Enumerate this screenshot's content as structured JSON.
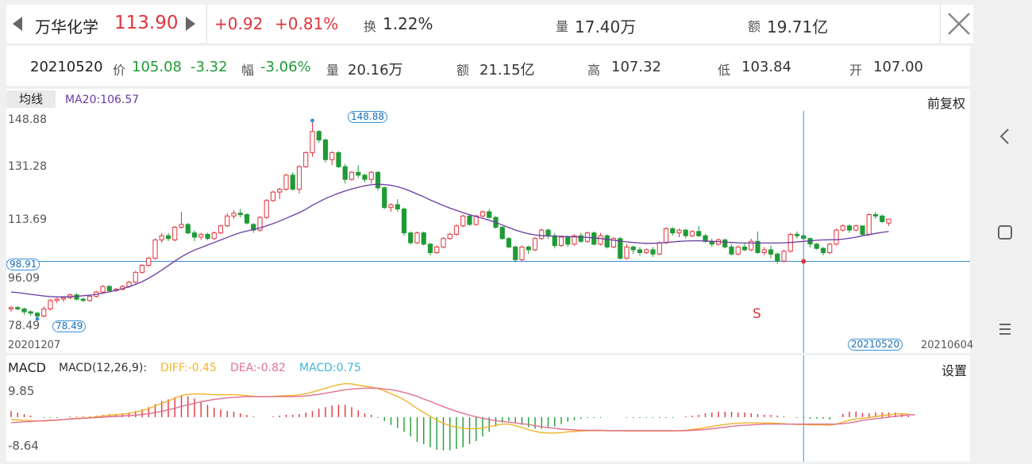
{
  "header": {
    "stock_name": "万华化学",
    "price": "113.90",
    "change": "+0.92",
    "change_pct": "+0.81%",
    "turnover_label": "换",
    "turnover": "1.22%",
    "volume_label": "量",
    "volume": "17.40万",
    "amount_label": "额",
    "amount": "19.71亿"
  },
  "info": {
    "date": "20210520",
    "price_label": "价",
    "price": "105.08",
    "change": "-3.32",
    "range_label": "幅",
    "range": "-3.06%",
    "volume_label": "量",
    "volume": "20.16万",
    "amount_label": "额",
    "amount": "21.15亿",
    "high_label": "高",
    "high": "107.32",
    "low_label": "低",
    "low": "103.84",
    "open_label": "开",
    "open": "107.00"
  },
  "kchart": {
    "ma_tab": "均线",
    "ma_text": "MA20:106.57",
    "adjust": "前复权",
    "y_labels": [
      "148.88",
      "131.28",
      "113.69",
      "96.09",
      "78.49"
    ],
    "max_tag": "148.88",
    "min_tag": "78.49",
    "ref_tag": "98.91",
    "signal": "S",
    "start_date": "20201207",
    "cursor_date": "20210520",
    "end_date": "20210604"
  },
  "macd": {
    "title": "MACD",
    "params": "MACD(12,26,9):",
    "diff": "DIFF:-0.45",
    "dea": "DEA:-0.82",
    "macd": "MACD:0.75",
    "settings": "设置",
    "y_top": "9.85",
    "y_bottom": "-8.64"
  },
  "colors": {
    "up": "#e0343c",
    "down": "#1f9b36",
    "ma": "#6a3aa0",
    "diff": "#f0b429",
    "dea": "#e07090",
    "cursor": "#3a8fd9"
  },
  "chart_data": {
    "type": "candlestick",
    "candles": [
      [
        82,
        83,
        81,
        82.5
      ],
      [
        82.5,
        83,
        81.5,
        82
      ],
      [
        82,
        82.5,
        80,
        81
      ],
      [
        81,
        81.5,
        79.5,
        80.5
      ],
      [
        80.5,
        81,
        78.49,
        79.5
      ],
      [
        79.5,
        83,
        79,
        82
      ],
      [
        82,
        85.5,
        81.5,
        85
      ],
      [
        85,
        86,
        84,
        85.5
      ],
      [
        85.5,
        86.5,
        84.5,
        86
      ],
      [
        86,
        87.5,
        85.5,
        87
      ],
      [
        87,
        87.5,
        85,
        85.5
      ],
      [
        85.5,
        86,
        84.5,
        85
      ],
      [
        85,
        87,
        84.5,
        86.5
      ],
      [
        86.5,
        88.5,
        86,
        88
      ],
      [
        88,
        90.5,
        87.5,
        90
      ],
      [
        90,
        90.5,
        88,
        88.5
      ],
      [
        88.5,
        89.5,
        88,
        89
      ],
      [
        89,
        90.5,
        88.5,
        90
      ],
      [
        90,
        92,
        89.5,
        91.5
      ],
      [
        91.5,
        95.5,
        91,
        95
      ],
      [
        95,
        98,
        94.5,
        97.5
      ],
      [
        97.5,
        100.5,
        97,
        100
      ],
      [
        100,
        107,
        99.5,
        106.5
      ],
      [
        106.5,
        109,
        105.5,
        108
      ],
      [
        108,
        109,
        106,
        107
      ],
      [
        106.5,
        111.5,
        106,
        111
      ],
      [
        111,
        116.5,
        110.5,
        112
      ],
      [
        112,
        112.5,
        108.5,
        109
      ],
      [
        109,
        110,
        106,
        107.5
      ],
      [
        107.5,
        109,
        106.5,
        108.5
      ],
      [
        108.5,
        109,
        106.5,
        107
      ],
      [
        107,
        109.5,
        106.5,
        109
      ],
      [
        109,
        112,
        108.5,
        111.5
      ],
      [
        111.5,
        116,
        111,
        115
      ],
      [
        115,
        117,
        114,
        116
      ],
      [
        116,
        117.5,
        114.5,
        115.5
      ],
      [
        115.5,
        116,
        112,
        112.5
      ],
      [
        112,
        112.5,
        109,
        110
      ],
      [
        110,
        115,
        109.5,
        114.5
      ],
      [
        114.5,
        121,
        114,
        120.5
      ],
      [
        120.5,
        124,
        120,
        123.5
      ],
      [
        123.5,
        125,
        121,
        124.5
      ],
      [
        124.5,
        130,
        124,
        129.5
      ],
      [
        129.5,
        130.5,
        124,
        124.5
      ],
      [
        124.5,
        133,
        123,
        132.5
      ],
      [
        132.5,
        138,
        132,
        137.5
      ],
      [
        137.5,
        148.88,
        136,
        145
      ],
      [
        145,
        145.5,
        141,
        142
      ],
      [
        142,
        142.5,
        134,
        135
      ],
      [
        135,
        138,
        133,
        137.5
      ],
      [
        137.5,
        138,
        132,
        132.5
      ],
      [
        132.5,
        133.5,
        126.5,
        128
      ],
      [
        128,
        131,
        127.5,
        130.5
      ],
      [
        130.5,
        133,
        128.5,
        129.5
      ],
      [
        129.5,
        130,
        127,
        128
      ],
      [
        128,
        131,
        126.5,
        130.5
      ],
      [
        130.5,
        131,
        124,
        125
      ],
      [
        125,
        125.5,
        117.5,
        118
      ],
      [
        118,
        119.5,
        116.5,
        119
      ],
      [
        119,
        121,
        116.5,
        117.5
      ],
      [
        117.5,
        118,
        108,
        109
      ],
      [
        109,
        109.5,
        105,
        105.5
      ],
      [
        105.5,
        109.5,
        105,
        109
      ],
      [
        109,
        109.5,
        104.5,
        105
      ],
      [
        105,
        105.5,
        101,
        102
      ],
      [
        102,
        104.5,
        101.5,
        104
      ],
      [
        104,
        107.5,
        103.5,
        107
      ],
      [
        107,
        109,
        106.5,
        108.5
      ],
      [
        108.5,
        112,
        108,
        111.5
      ],
      [
        111.5,
        115.5,
        111,
        115
      ],
      [
        115,
        115.5,
        111.5,
        112
      ],
      [
        112,
        115.5,
        111.5,
        115
      ],
      [
        115,
        117,
        114.5,
        116.5
      ],
      [
        116.5,
        117.5,
        114,
        114.5
      ],
      [
        114.5,
        115,
        110.5,
        111
      ],
      [
        111,
        111.5,
        106.5,
        107
      ],
      [
        107,
        107.5,
        103.5,
        104
      ],
      [
        104,
        104.5,
        98.5,
        99.5
      ],
      [
        99.5,
        104.5,
        99,
        104
      ],
      [
        104,
        104.5,
        101.5,
        103
      ],
      [
        103,
        107.5,
        102.5,
        107
      ],
      [
        107,
        110.5,
        106.5,
        110
      ],
      [
        110,
        110.5,
        107,
        108
      ],
      [
        108,
        109,
        103.5,
        104.5
      ],
      [
        104.5,
        108,
        104,
        107.5
      ],
      [
        107.5,
        108,
        104,
        105
      ],
      [
        105,
        108.5,
        104.5,
        108
      ],
      [
        108,
        109,
        105.5,
        106
      ],
      [
        106,
        109.5,
        105.5,
        109
      ],
      [
        109,
        109.5,
        104.5,
        105
      ],
      [
        105,
        109,
        104.5,
        108
      ],
      [
        108,
        108.5,
        103.5,
        104
      ],
      [
        104,
        107.5,
        103.5,
        107
      ],
      [
        107,
        107.5,
        99.5,
        100
      ],
      [
        100,
        105,
        99.5,
        104
      ],
      [
        104,
        104.5,
        101.5,
        103
      ],
      [
        103,
        104,
        101,
        102
      ],
      [
        102,
        103.5,
        101.5,
        103
      ],
      [
        103,
        104,
        100.5,
        101.5
      ],
      [
        101.5,
        106,
        101,
        105.5
      ],
      [
        105.5,
        111,
        105,
        110.5
      ],
      [
        110.5,
        111,
        108,
        109
      ],
      [
        109,
        110.5,
        107.5,
        110
      ],
      [
        110,
        110.5,
        107,
        108
      ],
      [
        108,
        110,
        107.5,
        109.5
      ],
      [
        109.5,
        111.5,
        107.5,
        108
      ],
      [
        108,
        108.5,
        105.5,
        106
      ],
      [
        106,
        107,
        104,
        105
      ],
      [
        105,
        107,
        104.5,
        106.5
      ],
      [
        106.5,
        107,
        103.5,
        104
      ],
      [
        104,
        105,
        101,
        101.5
      ],
      [
        101.5,
        104.5,
        101,
        104
      ],
      [
        104,
        105.5,
        102.5,
        103
      ],
      [
        103,
        107,
        102.5,
        106
      ],
      [
        106,
        109.5,
        101.5,
        102
      ],
      [
        102,
        104,
        101,
        103
      ],
      [
        103,
        104.5,
        100,
        101.5
      ],
      [
        101.5,
        102,
        98,
        99
      ],
      [
        99,
        103,
        98.5,
        102.5
      ],
      [
        102.5,
        109,
        102,
        108.5
      ],
      [
        108.5,
        109.5,
        107,
        108
      ],
      [
        108,
        109,
        106.5,
        107
      ],
      [
        107,
        107.32,
        103.84,
        105.08
      ],
      [
        105,
        105.5,
        103,
        103.5
      ],
      [
        103.5,
        104,
        101,
        102
      ],
      [
        102,
        105.5,
        101.5,
        105
      ],
      [
        105,
        110.5,
        104.5,
        110
      ],
      [
        110,
        112,
        109.5,
        111.5
      ],
      [
        111.5,
        112,
        109,
        110
      ],
      [
        110,
        112,
        109.5,
        111.5
      ],
      [
        111.5,
        111.5,
        108,
        108.5
      ],
      [
        108.5,
        116,
        108,
        115.5
      ],
      [
        115.5,
        116.5,
        114,
        115
      ],
      [
        115,
        115.5,
        112.5,
        113
      ],
      [
        112.5,
        113.9,
        111.5,
        113.9
      ]
    ],
    "ma20": [
      88,
      87.8,
      87.5,
      87.2,
      86.9,
      86.6,
      86.4,
      86.3,
      86.3,
      86.4,
      86.5,
      86.7,
      86.9,
      87.2,
      87.6,
      88.1,
      88.6,
      89.2,
      89.9,
      90.7,
      91.7,
      92.9,
      94.3,
      95.8,
      97.4,
      99,
      100.5,
      101.8,
      102.9,
      103.8,
      104.7,
      105.6,
      106.5,
      107.4,
      108.3,
      109.1,
      109.7,
      110.2,
      110.8,
      111.5,
      112.3,
      113.2,
      114.2,
      115.2,
      116.2,
      117.4,
      118.8,
      120,
      121.2,
      122.2,
      123.1,
      123.9,
      124.6,
      125.2,
      125.7,
      126.1,
      126.3,
      126.2,
      125.9,
      125.4,
      124.7,
      123.8,
      122.8,
      121.8,
      120.7,
      119.7,
      118.7,
      117.8,
      117,
      116.2,
      115.5,
      114.8,
      114.2,
      113.5,
      112.7,
      111.8,
      110.9,
      110,
      109.3,
      108.7,
      108.3,
      108,
      107.9,
      107.8,
      107.8,
      107.7,
      107.6,
      107.5,
      107.4,
      107.2,
      107,
      106.7,
      106.4,
      106.1,
      105.8,
      105.6,
      105.4,
      105.3,
      105.3,
      105.4,
      105.6,
      105.8,
      106,
      106.1,
      106.2,
      106.2,
      106.1,
      106,
      105.9,
      105.7,
      105.6,
      105.5,
      105.4,
      105.4,
      105.4,
      105.4,
      105.4,
      105.4,
      105.5,
      105.6,
      105.8,
      106,
      106.2,
      106.4,
      106.5,
      106.57,
      106.6,
      106.8,
      107.1,
      107.5,
      108,
      108.4,
      108.8,
      109.2,
      109.5
    ],
    "y_range": [
      78.49,
      148.88
    ],
    "reference_line": 98.91,
    "macd_diff": [
      -0.6,
      -0.7,
      -0.8,
      -0.9,
      -1,
      -1,
      -0.9,
      -0.8,
      -0.6,
      -0.4,
      -0.3,
      -0.2,
      -0.1,
      0.1,
      0.3,
      0.5,
      0.6,
      0.8,
      1,
      1.3,
      1.7,
      2.2,
      2.9,
      3.6,
      4.2,
      4.9,
      5.6,
      5.9,
      6,
      6,
      5.9,
      5.8,
      5.8,
      5.8,
      5.8,
      5.7,
      5.6,
      5.4,
      5.3,
      5.3,
      5.4,
      5.5,
      5.6,
      5.6,
      5.8,
      6.1,
      6.5,
      7,
      7.5,
      8,
      8.4,
      8.7,
      8.6,
      8.3,
      8,
      7.8,
      7.4,
      6.8,
      6.1,
      5.4,
      4.5,
      3.4,
      2.2,
      1.2,
      0.2,
      -0.8,
      -1.6,
      -2.2,
      -2.6,
      -2.9,
      -3,
      -3,
      -2.8,
      -2.5,
      -2.1,
      -1.8,
      -1.8,
      -2.2,
      -2.7,
      -3.2,
      -3.7,
      -4,
      -4.1,
      -4.1,
      -4,
      -3.8,
      -3.7,
      -3.6,
      -3.5,
      -3.5,
      -3.5,
      -3.5,
      -3.5,
      -3.5,
      -3.6,
      -3.6,
      -3.6,
      -3.6,
      -3.6,
      -3.6,
      -3.6,
      -3.6,
      -3.5,
      -3.4,
      -3.2,
      -3,
      -2.7,
      -2.4,
      -2.1,
      -1.9,
      -1.7,
      -1.6,
      -1.5,
      -1.5,
      -1.5,
      -1.5,
      -1.5,
      -1.6,
      -1.7,
      -1.8,
      -1.9,
      -1.9,
      -2,
      -2,
      -2,
      -2.1,
      -1.8,
      -1.3,
      -0.8,
      -0.45,
      -0.3,
      -0.1,
      0.2,
      0.4,
      0.6,
      0.8,
      0.9,
      0.8
    ],
    "macd_dea": [
      -1.4,
      -1.3,
      -1.2,
      -1.1,
      -1,
      -0.9,
      -0.8,
      -0.7,
      -0.6,
      -0.5,
      -0.4,
      -0.3,
      -0.2,
      -0.1,
      0,
      0.1,
      0.2,
      0.3,
      0.4,
      0.5,
      0.7,
      0.9,
      1.2,
      1.5,
      1.9,
      2.3,
      2.8,
      3.2,
      3.6,
      4,
      4.3,
      4.6,
      4.8,
      5,
      5.1,
      5.2,
      5.3,
      5.3,
      5.3,
      5.3,
      5.3,
      5.3,
      5.3,
      5.3,
      5.4,
      5.5,
      5.7,
      5.9,
      6.2,
      6.5,
      6.8,
      7.1,
      7.3,
      7.4,
      7.5,
      7.5,
      7.5,
      7.3,
      7.1,
      6.8,
      6.4,
      5.9,
      5.4,
      4.7,
      4.1,
      3.4,
      2.7,
      2.1,
      1.5,
      1,
      0.5,
      0.1,
      -0.3,
      -0.6,
      -0.9,
      -1.1,
      -1.3,
      -1.5,
      -1.7,
      -1.9,
      -2.2,
      -2.5,
      -2.7,
      -2.9,
      -3.1,
      -3.2,
      -3.3,
      -3.4,
      -3.4,
      -3.4,
      -3.4,
      -3.5,
      -3.5,
      -3.5,
      -3.5,
      -3.5,
      -3.5,
      -3.5,
      -3.5,
      -3.5,
      -3.5,
      -3.5,
      -3.5,
      -3.5,
      -3.4,
      -3.3,
      -3.2,
      -3,
      -2.8,
      -2.6,
      -2.4,
      -2.2,
      -2.1,
      -2,
      -1.9,
      -1.8,
      -1.8,
      -1.8,
      -1.8,
      -1.8,
      -1.8,
      -1.8,
      -1.8,
      -1.8,
      -1.8,
      -1.8,
      -1.8,
      -1.7,
      -1.5,
      -1.2,
      -0.82,
      -0.6,
      -0.4,
      -0.2,
      0,
      0.2,
      0.4,
      0.6,
      0.6
    ],
    "macd_range": [
      -8.64,
      9.85
    ]
  }
}
